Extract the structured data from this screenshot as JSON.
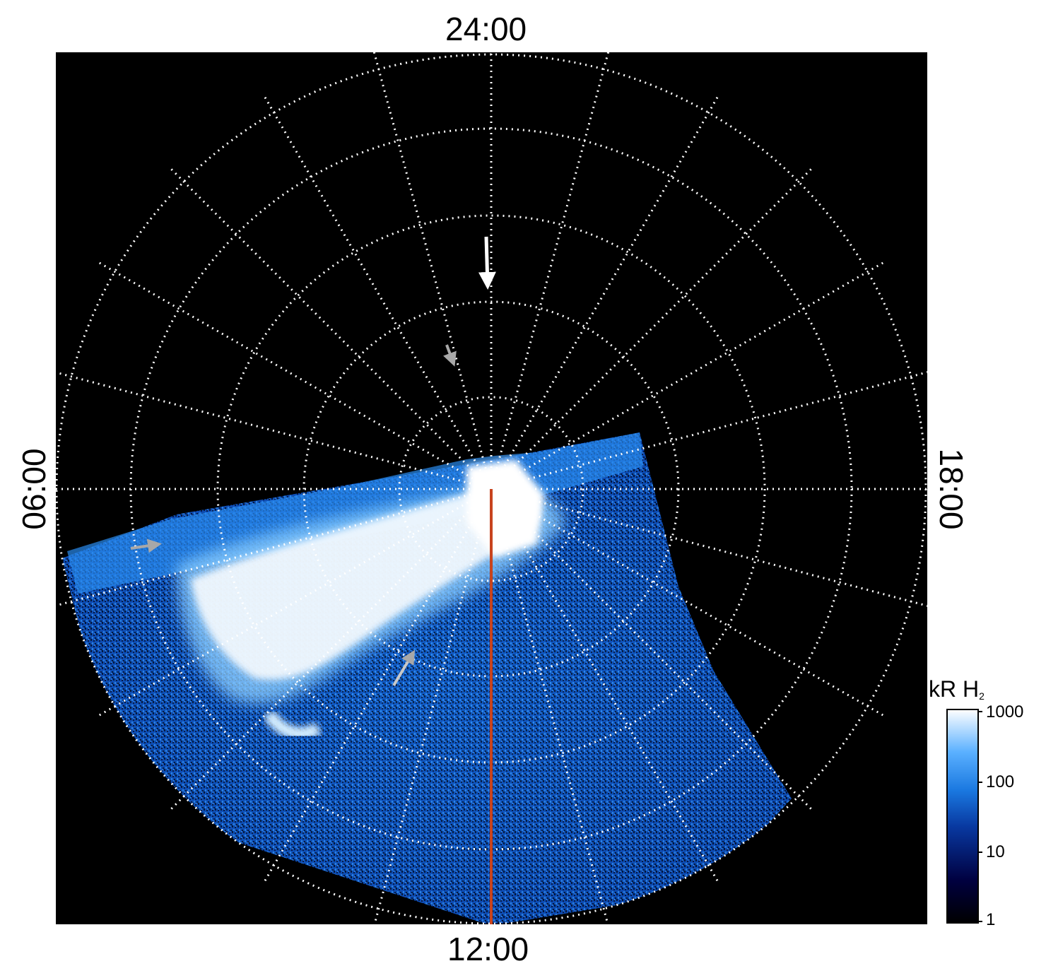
{
  "lt_labels": {
    "top": "24:00",
    "bottom": "12:00",
    "left": "06:00",
    "right": "18:00"
  },
  "colorbar": {
    "title": "kR H",
    "title_sub": "2",
    "ticks": [
      "1000",
      "100",
      "10",
      "1"
    ],
    "scale": "log",
    "range": [
      1,
      1000
    ],
    "colors": [
      "#000000",
      "#00004a",
      "#0a3aa8",
      "#1e7ee0",
      "#5ab4ff",
      "#ffffff"
    ]
  },
  "colors": {
    "background": "#000000",
    "grid": "#ffffff",
    "meridian_line": "#c8441e",
    "aurora": "#ffffff",
    "emission_blue": "#1e78e6"
  }
}
